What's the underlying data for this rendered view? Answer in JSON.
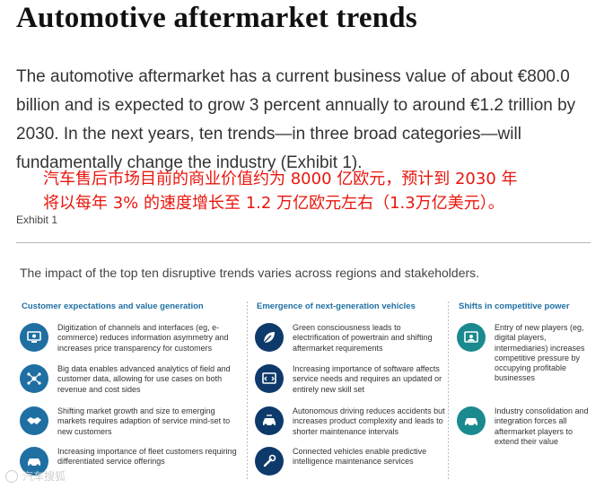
{
  "title": "Automotive aftermarket trends",
  "intro": "The automotive aftermarket has a current business value of about €800.0 billion and is expected to grow 3 percent annually to around €1.2 trillion by 2030. In the next years, ten trends—in three broad categories—will fundamentally change the industry (Exhibit 1).",
  "overlay_cn_line1": "汽车售后市场目前的商业价值约为 8000 亿欧元，预计到 2030 年",
  "overlay_cn_line2": "将以每年 3% 的速度增长至 1.2 万亿欧元左右（1.3万亿美元）。",
  "exhibit_label": "Exhibit 1",
  "exhibit_subtitle": "The impact of the top ten disruptive trends varies across regions and stakeholders.",
  "columns": [
    {
      "heading": "Customer expectations and value generation",
      "items": [
        {
          "icon": "digital-channels-icon",
          "text": "Digitization of channels and interfaces (eg, e-commerce) reduces information asymmetry and increases price transparency for customers"
        },
        {
          "icon": "big-data-icon",
          "text": "Big data enables advanced analytics of field and customer data, allowing for use cases on both revenue and cost sides"
        },
        {
          "icon": "handshake-icon",
          "text": "Shifting market growth and size to emerging markets requires adaption of service mind-set to new customers"
        },
        {
          "icon": "fleet-icon",
          "text": "Increasing importance of fleet customers requiring differentiated service offerings"
        }
      ]
    },
    {
      "heading": "Emergence of next-generation vehicles",
      "items": [
        {
          "icon": "leaf-icon",
          "text": "Green consciousness leads to electrification of powertrain and shifting aftermarket requirements"
        },
        {
          "icon": "software-icon",
          "text": "Increasing importance of software affects service needs and requires an updated or entirely new skill set"
        },
        {
          "icon": "autonomous-car-icon",
          "text": "Autonomous driving reduces accidents but increases product complexity and leads to shorter maintenance intervals"
        },
        {
          "icon": "connected-wrench-icon",
          "text": "Connected vehicles enable predictive intelligence maintenance services"
        }
      ]
    },
    {
      "heading": "Shifts in competitive power",
      "items": [
        {
          "icon": "new-players-icon",
          "text": "Entry of new players (eg, digital players, intermediaries) increases competitive pressure by occupying profitable businesses"
        },
        {
          "icon": "consolidation-icon",
          "text": "Industry consolidation and integration forces all aftermarket players to extend their value"
        }
      ]
    }
  ],
  "watermark": "汽车搜狐",
  "colors": {
    "accent_blue": "#1f6fa3",
    "navy": "#0e3a6b",
    "teal": "#1a8a8e",
    "overlay_red": "#e8160e"
  }
}
